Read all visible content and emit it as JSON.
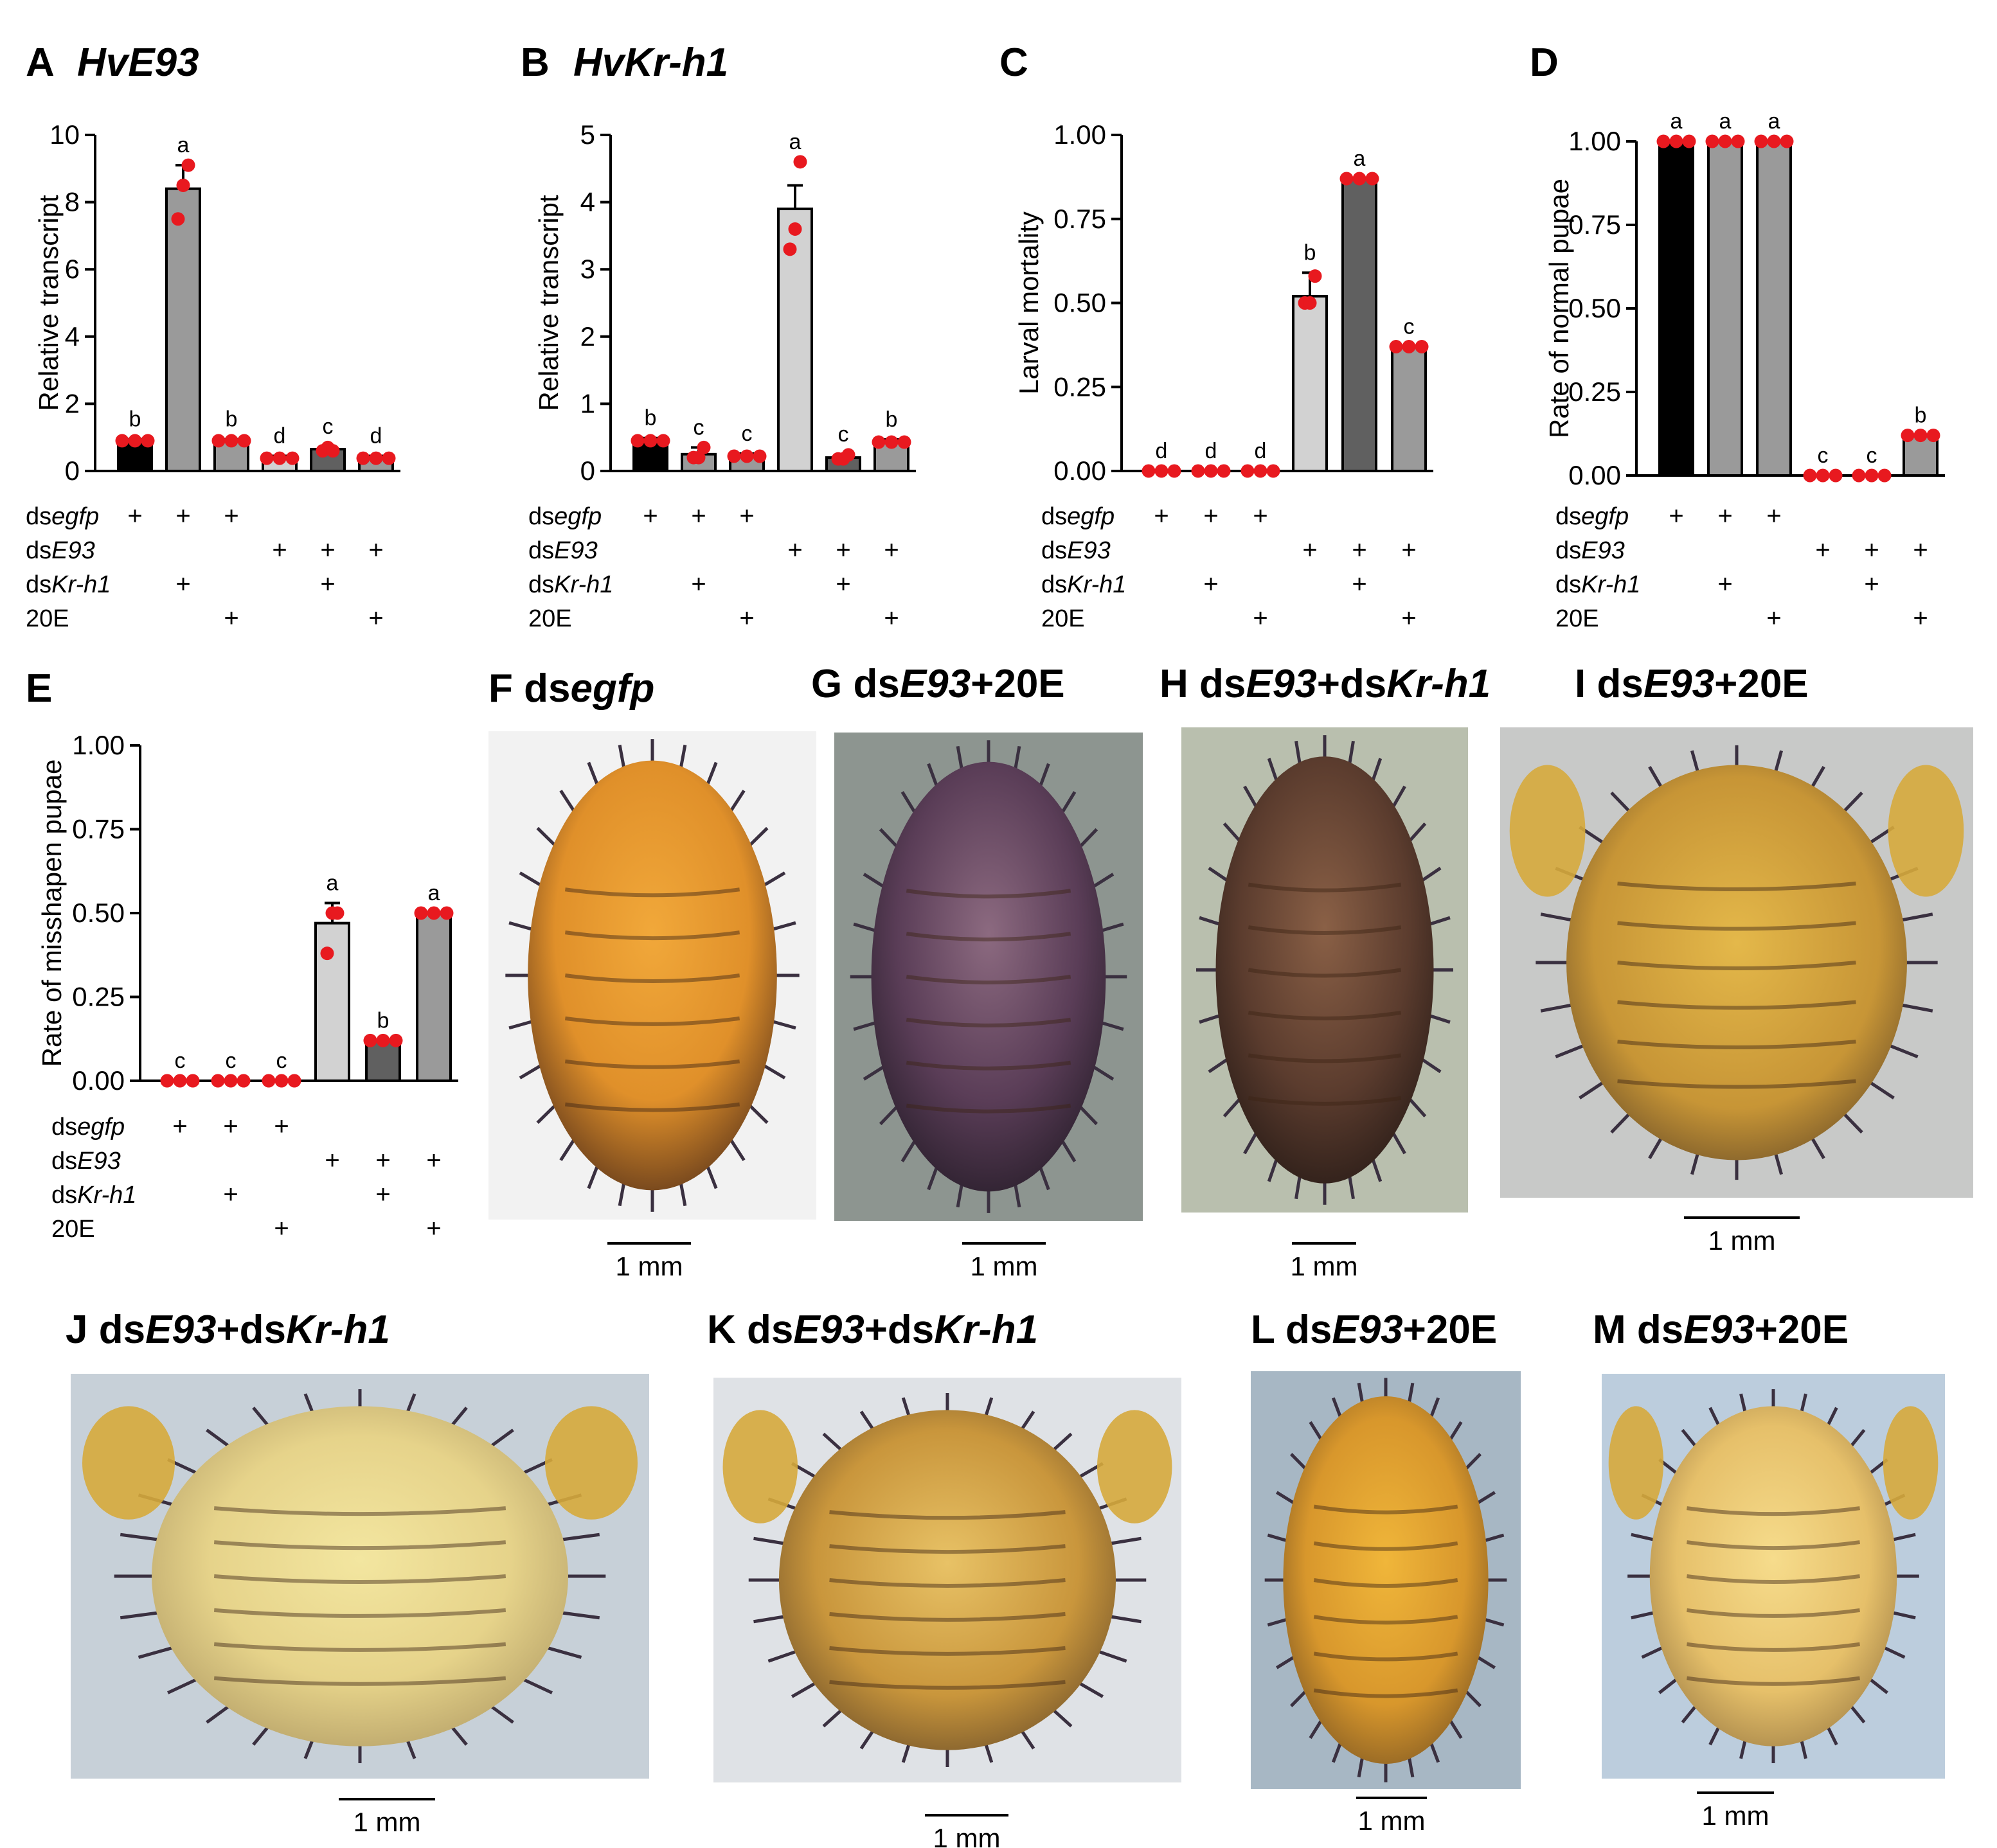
{
  "colors": {
    "black": "#000000",
    "darkgray": "#606060",
    "midgray": "#9a9a9a",
    "lightgray": "#d2d2d2",
    "dot": "#e8191f"
  },
  "treatments": [
    {
      "prefix": "ds",
      "italic": "egfp",
      "suffix": ""
    },
    {
      "prefix": "ds",
      "italic": "E93",
      "suffix": ""
    },
    {
      "prefix": "ds",
      "italic": "Kr-h1",
      "suffix": ""
    },
    {
      "prefix": "20E",
      "italic": "",
      "suffix": ""
    }
  ],
  "matrix": [
    [
      1,
      1,
      1,
      0,
      0,
      0
    ],
    [
      0,
      0,
      0,
      1,
      1,
      1
    ],
    [
      0,
      1,
      0,
      0,
      1,
      0
    ],
    [
      0,
      0,
      1,
      0,
      0,
      1
    ]
  ],
  "plus_symbol": "+",
  "chart_data": [
    {
      "panel": "A",
      "title": "HvE93",
      "type": "bar",
      "ylabel": "Relative  transcript",
      "ylim": [
        0,
        10
      ],
      "ticks": [
        "0",
        "2",
        "4",
        "6",
        "8",
        "10"
      ],
      "tick_values": [
        0,
        2,
        4,
        6,
        8,
        10
      ],
      "values": [
        0.9,
        8.4,
        0.9,
        0.4,
        0.65,
        0.4
      ],
      "errors": [
        0.05,
        0.7,
        0.05,
        0.05,
        0.08,
        0.05
      ],
      "letters": [
        "b",
        "a",
        "b",
        "d",
        "c",
        "d"
      ],
      "points": [
        [
          0.9,
          0.9,
          0.9
        ],
        [
          7.5,
          8.5,
          9.1
        ],
        [
          0.9,
          0.9,
          0.9
        ],
        [
          0.38,
          0.38,
          0.38
        ],
        [
          0.6,
          0.7,
          0.6
        ],
        [
          0.38,
          0.38,
          0.38
        ]
      ],
      "fills": [
        "black",
        "midgray",
        "midgray",
        "lightgray",
        "darkgray",
        "midgray"
      ]
    },
    {
      "panel": "B",
      "title": "HvKr-h1",
      "type": "bar",
      "ylabel": "Relative  transcript",
      "ylim": [
        0,
        5
      ],
      "ticks": [
        "0",
        "1",
        "2",
        "3",
        "4",
        "5"
      ],
      "tick_values": [
        0,
        1,
        2,
        3,
        4,
        5
      ],
      "values": [
        0.45,
        0.25,
        0.22,
        3.9,
        0.2,
        0.43
      ],
      "errors": [
        0.04,
        0.1,
        0.04,
        0.35,
        0.05,
        0.04
      ],
      "letters": [
        "b",
        "c",
        "c",
        "a",
        "c",
        "b"
      ],
      "points": [
        [
          0.45,
          0.45,
          0.45
        ],
        [
          0.2,
          0.2,
          0.35
        ],
        [
          0.22,
          0.22,
          0.22
        ],
        [
          3.3,
          3.6,
          4.6
        ],
        [
          0.18,
          0.18,
          0.24
        ],
        [
          0.43,
          0.43,
          0.43
        ]
      ],
      "fills": [
        "black",
        "midgray",
        "midgray",
        "lightgray",
        "darkgray",
        "midgray"
      ]
    },
    {
      "panel": "C",
      "title": "",
      "type": "bar",
      "ylabel": "Larval  mortality",
      "ylim": [
        0,
        1
      ],
      "ticks": [
        "0.00",
        "0.25",
        "0.50",
        "0.75",
        "1.00"
      ],
      "tick_values": [
        0,
        0.25,
        0.5,
        0.75,
        1
      ],
      "values": [
        0,
        0,
        0,
        0.52,
        0.87,
        0.37
      ],
      "errors": [
        0,
        0,
        0,
        0.07,
        0,
        0
      ],
      "letters": [
        "d",
        "d",
        "d",
        "b",
        "a",
        "c"
      ],
      "points": [
        [
          0,
          0,
          0
        ],
        [
          0,
          0,
          0
        ],
        [
          0,
          0,
          0
        ],
        [
          0.5,
          0.5,
          0.58
        ],
        [
          0.87,
          0.87,
          0.87
        ],
        [
          0.37,
          0.37,
          0.37
        ]
      ],
      "fills": [
        "black",
        "midgray",
        "midgray",
        "lightgray",
        "darkgray",
        "midgray"
      ]
    },
    {
      "panel": "D",
      "title": "",
      "type": "bar",
      "ylabel": "Rate of normal pupae",
      "ylim": [
        0,
        1
      ],
      "ticks": [
        "0.00",
        "0.25",
        "0.50",
        "0.75",
        "1.00"
      ],
      "tick_values": [
        0,
        0.25,
        0.5,
        0.75,
        1
      ],
      "values": [
        1,
        1,
        1,
        0,
        0,
        0.12
      ],
      "errors": [
        0,
        0,
        0,
        0,
        0,
        0
      ],
      "letters": [
        "a",
        "a",
        "a",
        "c",
        "c",
        "b"
      ],
      "points": [
        [
          1,
          1,
          1
        ],
        [
          1,
          1,
          1
        ],
        [
          1,
          1,
          1
        ],
        [
          0,
          0,
          0
        ],
        [
          0,
          0,
          0
        ],
        [
          0.12,
          0.12,
          0.12
        ]
      ],
      "fills": [
        "black",
        "midgray",
        "midgray",
        "lightgray",
        "darkgray",
        "midgray"
      ]
    },
    {
      "panel": "E",
      "title": "",
      "type": "bar",
      "ylabel": "Rate of misshapen pupae",
      "ylim": [
        0,
        1
      ],
      "ticks": [
        "0.00",
        "0.25",
        "0.50",
        "0.75",
        "1.00"
      ],
      "tick_values": [
        0,
        0.25,
        0.5,
        0.75,
        1
      ],
      "values": [
        0,
        0,
        0,
        0.47,
        0.12,
        0.5
      ],
      "errors": [
        0,
        0,
        0,
        0.06,
        0,
        0
      ],
      "letters": [
        "c",
        "c",
        "c",
        "a",
        "b",
        "a"
      ],
      "points": [
        [
          0,
          0,
          0
        ],
        [
          0,
          0,
          0
        ],
        [
          0,
          0,
          0
        ],
        [
          0.38,
          0.5,
          0.5
        ],
        [
          0.12,
          0.12,
          0.12
        ],
        [
          0.5,
          0.5,
          0.5
        ]
      ],
      "fills": [
        "black",
        "midgray",
        "midgray",
        "lightgray",
        "darkgray",
        "midgray"
      ]
    }
  ],
  "photos": [
    {
      "panel": "F",
      "prefix": "ds",
      "italic": "egfp",
      "rest": "",
      "scale": "1  mm",
      "tone": "orange"
    },
    {
      "panel": "G",
      "prefix": "ds",
      "italic": "E93",
      "rest": "+20E",
      "scale": "1  mm",
      "tone": "purple"
    },
    {
      "panel": "H",
      "prefix": "ds",
      "italic": "E93",
      "rest": "+ds",
      "italic2": "Kr-h1",
      "scale": "1  mm",
      "tone": "brown"
    },
    {
      "panel": "I",
      "prefix": "ds",
      "italic": "E93",
      "rest": "+20E",
      "scale": "1  mm",
      "tone": "yellowbrown"
    },
    {
      "panel": "J",
      "prefix": "ds",
      "italic": "E93",
      "rest": "+ds",
      "italic2": "Kr-h1",
      "scale": "1  mm",
      "tone": "pale"
    },
    {
      "panel": "K",
      "prefix": "ds",
      "italic": "E93",
      "rest": "+ds",
      "italic2": "Kr-h1",
      "scale": "1  mm",
      "tone": "amber"
    },
    {
      "panel": "L",
      "prefix": "ds",
      "italic": "E93",
      "rest": "+20E",
      "scale": "1  mm",
      "tone": "gold"
    },
    {
      "panel": "M",
      "prefix": "ds",
      "italic": "E93",
      "rest": "+20E",
      "scale": "1  mm",
      "tone": "paleyellow"
    }
  ]
}
